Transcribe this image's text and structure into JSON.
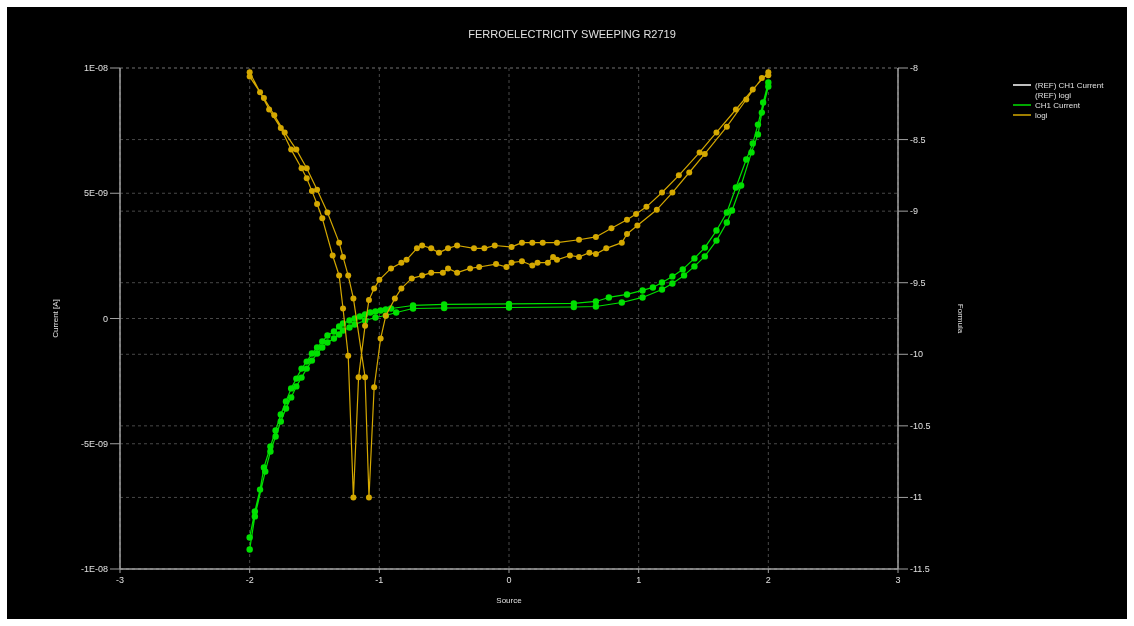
{
  "chart_data": {
    "type": "line",
    "title": "FERROELECTRICITY SWEEPING R2719",
    "xlabel": "Source",
    "ylabel": "Current [A]",
    "y2label": "Formula",
    "xlim": [
      -3,
      3
    ],
    "xticks": [
      -3,
      -2,
      -1,
      0,
      1,
      2,
      3
    ],
    "ylim": [
      -1e-08,
      1e-08
    ],
    "yticks": [
      {
        "value": -1e-08,
        "label": "-1E-08"
      },
      {
        "value": -5e-09,
        "label": "-5E-09"
      },
      0,
      {
        "value": 5e-09,
        "label": "5E-09"
      },
      {
        "value": 1e-08,
        "label": "1E-08"
      }
    ],
    "y2lim": [
      -11.5,
      -8
    ],
    "y2ticks": [
      -11.5,
      -11,
      -10.5,
      -10,
      -9.5,
      -9,
      -8.5,
      -8
    ],
    "grid": true,
    "legend": "right",
    "marker": "circle",
    "line_style": "solid",
    "series": [
      {
        "name": "(REF) CH1 Current",
        "color": "#ffffff"
      },
      {
        "name": "(REF) logi",
        "axis": "y2"
      },
      {
        "name": "CH1 Current",
        "color": "#00e000",
        "x": [
          -2.0,
          -1.96,
          -1.88,
          -1.84,
          -1.8,
          -1.76,
          -1.72,
          -1.68,
          -1.64,
          -1.6,
          -1.56,
          -1.52,
          -1.48,
          -1.44,
          -1.4,
          -1.35,
          -1.31,
          -1.28,
          -1.23,
          -1.19,
          -1.11,
          -1.03,
          -0.95,
          -0.87,
          -0.74,
          -0.5,
          0,
          0.5,
          0.67,
          0.87,
          1.03,
          1.18,
          1.26,
          1.35,
          1.43,
          1.51,
          1.6,
          1.68,
          1.72,
          1.79,
          1.87,
          1.92,
          1.95,
          2.0,
          2.0,
          1.96,
          1.92,
          1.88,
          1.83,
          1.75,
          1.68,
          1.6,
          1.51,
          1.43,
          1.34,
          1.26,
          1.18,
          1.11,
          1.03,
          0.91,
          0.77,
          0.67,
          0.5,
          0,
          -0.5,
          -0.74,
          -0.91,
          -0.95,
          -0.99,
          -1.03,
          -1.07,
          -1.11,
          -1.15,
          -1.19,
          -1.23,
          -1.28,
          -1.31,
          -1.35,
          -1.4,
          -1.44,
          -1.48,
          -1.52,
          -1.56,
          -1.6,
          -1.64,
          -1.68,
          -1.72,
          -1.76,
          -1.8,
          -1.84,
          -1.89,
          -1.92,
          -1.96,
          -2.0
        ],
        "values": [
          -9.22e-09,
          -7.9e-09,
          -6.11e-09,
          -5.31e-09,
          -4.71e-09,
          -4.11e-09,
          -3.59e-09,
          -3.15e-09,
          -2.71e-09,
          -2.36e-09,
          -2e-09,
          -1.68e-09,
          -1.4e-09,
          -1.16e-09,
          -9.6e-10,
          -8e-10,
          -6.4e-10,
          -4.8e-10,
          -3.6e-10,
          -2.4e-10,
          -8e-11,
          4e-11,
          1.2e-10,
          2.4e-10,
          4e-10,
          4.2e-10,
          4.4e-10,
          4.6e-10,
          4.8e-10,
          6.4e-10,
          8.4e-10,
          1.16e-09,
          1.4e-09,
          1.72e-09,
          2.08e-09,
          2.48e-09,
          3.11e-09,
          3.83e-09,
          4.31e-09,
          5.31e-09,
          6.63e-09,
          7.35e-09,
          8.22e-09,
          9.26e-09,
          9.42e-09,
          8.62e-09,
          7.74e-09,
          6.99e-09,
          6.35e-09,
          5.23e-09,
          4.23e-09,
          3.51e-09,
          2.83e-09,
          2.4e-09,
          1.96e-09,
          1.68e-09,
          1.44e-09,
          1.24e-09,
          1.12e-09,
          9.6e-10,
          8.4e-10,
          6.8e-10,
          6e-10,
          5.8e-10,
          5.6e-10,
          5.2e-10,
          4e-10,
          3.6e-10,
          3.2e-10,
          2.8e-10,
          2.4e-10,
          1.6e-10,
          8e-11,
          0,
          -8e-11,
          -2e-10,
          -3.2e-10,
          -5.2e-10,
          -6.8e-10,
          -9.2e-10,
          -1.16e-09,
          -1.4e-09,
          -1.72e-09,
          -2e-09,
          -2.4e-09,
          -2.79e-09,
          -3.31e-09,
          -3.83e-09,
          -4.47e-09,
          -5.11e-09,
          -5.95e-09,
          -6.83e-09,
          -7.7e-09,
          -8.74e-09
        ]
      },
      {
        "name": "logi",
        "color": "#d4a800",
        "axis": "y2",
        "x": [
          2.0,
          1.88,
          1.75,
          1.6,
          1.47,
          1.31,
          1.18,
          1.06,
          0.98,
          0.91,
          0.79,
          0.67,
          0.54,
          0.37,
          0.26,
          0.18,
          0.1,
          0.02,
          -0.11,
          -0.19,
          -0.27,
          -0.4,
          -0.47,
          -0.54,
          -0.6,
          -0.67,
          -0.71,
          -0.79,
          -0.83,
          -0.91,
          -1.0,
          -1.04,
          -1.08,
          -1.11,
          -1.16,
          -1.2,
          -1.24,
          -1.28,
          -1.31,
          -1.36,
          -1.44,
          -1.48,
          -1.52,
          -1.56,
          -1.6,
          -1.68,
          -1.76,
          -1.85,
          -1.92,
          -2.0,
          -2.0,
          -1.89,
          -1.81,
          -1.73,
          -1.64,
          -1.56,
          -1.48,
          -1.4,
          -1.31,
          -1.28,
          -1.24,
          -1.2,
          -1.11,
          -1.08,
          -1.04,
          -0.99,
          -0.95,
          -0.88,
          -0.83,
          -0.75,
          -0.67,
          -0.6,
          -0.51,
          -0.47,
          -0.4,
          -0.3,
          -0.23,
          -0.1,
          -0.02,
          0.02,
          0.1,
          0.18,
          0.22,
          0.3,
          0.34,
          0.37,
          0.47,
          0.54,
          0.62,
          0.67,
          0.75,
          0.87,
          0.91,
          0.99,
          1.14,
          1.26,
          1.39,
          1.51,
          1.68,
          1.83,
          1.95,
          2.0
        ],
        "values": [
          -8.03,
          -8.15,
          -8.29,
          -8.45,
          -8.59,
          -8.75,
          -8.87,
          -8.97,
          -9.02,
          -9.06,
          -9.12,
          -9.18,
          -9.2,
          -9.22,
          -9.22,
          -9.22,
          -9.22,
          -9.25,
          -9.24,
          -9.26,
          -9.26,
          -9.24,
          -9.26,
          -9.29,
          -9.26,
          -9.24,
          -9.26,
          -9.34,
          -9.36,
          -9.4,
          -9.48,
          -9.54,
          -9.62,
          -9.8,
          -10.16,
          -11.0,
          -10.01,
          -9.68,
          -9.45,
          -9.31,
          -9.05,
          -8.95,
          -8.86,
          -8.77,
          -8.7,
          -8.57,
          -8.42,
          -8.29,
          -8.17,
          -8.03,
          -8.06,
          -8.21,
          -8.33,
          -8.45,
          -8.57,
          -8.7,
          -8.85,
          -9.01,
          -9.22,
          -9.32,
          -9.45,
          -9.61,
          -10.16,
          -11.0,
          -10.23,
          -9.89,
          -9.73,
          -9.61,
          -9.54,
          -9.47,
          -9.45,
          -9.43,
          -9.43,
          -9.4,
          -9.43,
          -9.4,
          -9.39,
          -9.37,
          -9.39,
          -9.36,
          -9.35,
          -9.38,
          -9.36,
          -9.36,
          -9.32,
          -9.34,
          -9.31,
          -9.32,
          -9.29,
          -9.3,
          -9.26,
          -9.22,
          -9.16,
          -9.1,
          -8.99,
          -8.87,
          -8.73,
          -8.6,
          -8.41,
          -8.22,
          -8.07,
          -8.05
        ]
      }
    ]
  }
}
